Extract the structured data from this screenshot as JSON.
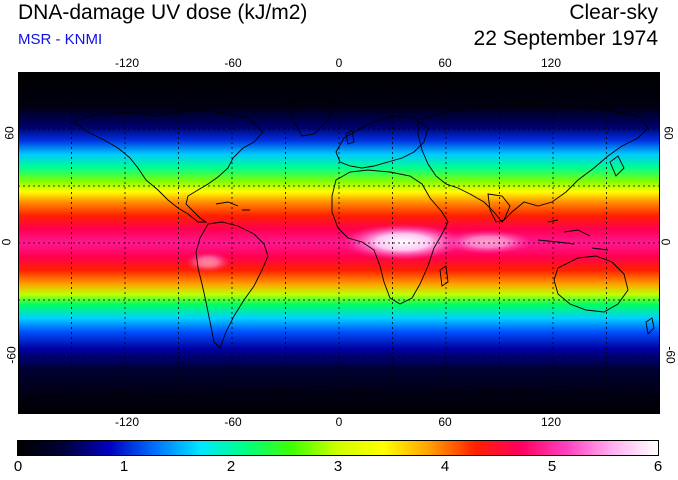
{
  "header": {
    "title": "DNA-damage UV dose (kJ/m2)",
    "subtitle": "MSR - KNMI",
    "condition": "Clear-sky",
    "date": "22 September 1974"
  },
  "axes": {
    "lon_ticks": [
      "-120",
      "-60",
      "0",
      "60",
      "120"
    ],
    "lat_ticks_left": [
      "60",
      "0",
      "-60"
    ],
    "lat_ticks_right": [
      "60",
      "0",
      "-60"
    ]
  },
  "colorbar": {
    "labels": [
      "0",
      "1",
      "2",
      "3",
      "4",
      "5",
      "6"
    ],
    "unit": "kJ/m2",
    "range": [
      0,
      6
    ],
    "stops": [
      "#000000",
      "#00003a",
      "#0000c0",
      "#0070ff",
      "#00e8ff",
      "#00ff80",
      "#40ff00",
      "#d0ff00",
      "#ffff00",
      "#ffa000",
      "#ff2000",
      "#ff0060",
      "#ff40c0",
      "#ffb0f0",
      "#ffffff"
    ]
  },
  "map": {
    "projection": "equirectangular",
    "lon_range": [
      -180,
      180
    ],
    "lat_range": [
      -90,
      90
    ],
    "gridlines": "dotted every 30 degrees",
    "features": [
      "coastlines"
    ]
  }
}
